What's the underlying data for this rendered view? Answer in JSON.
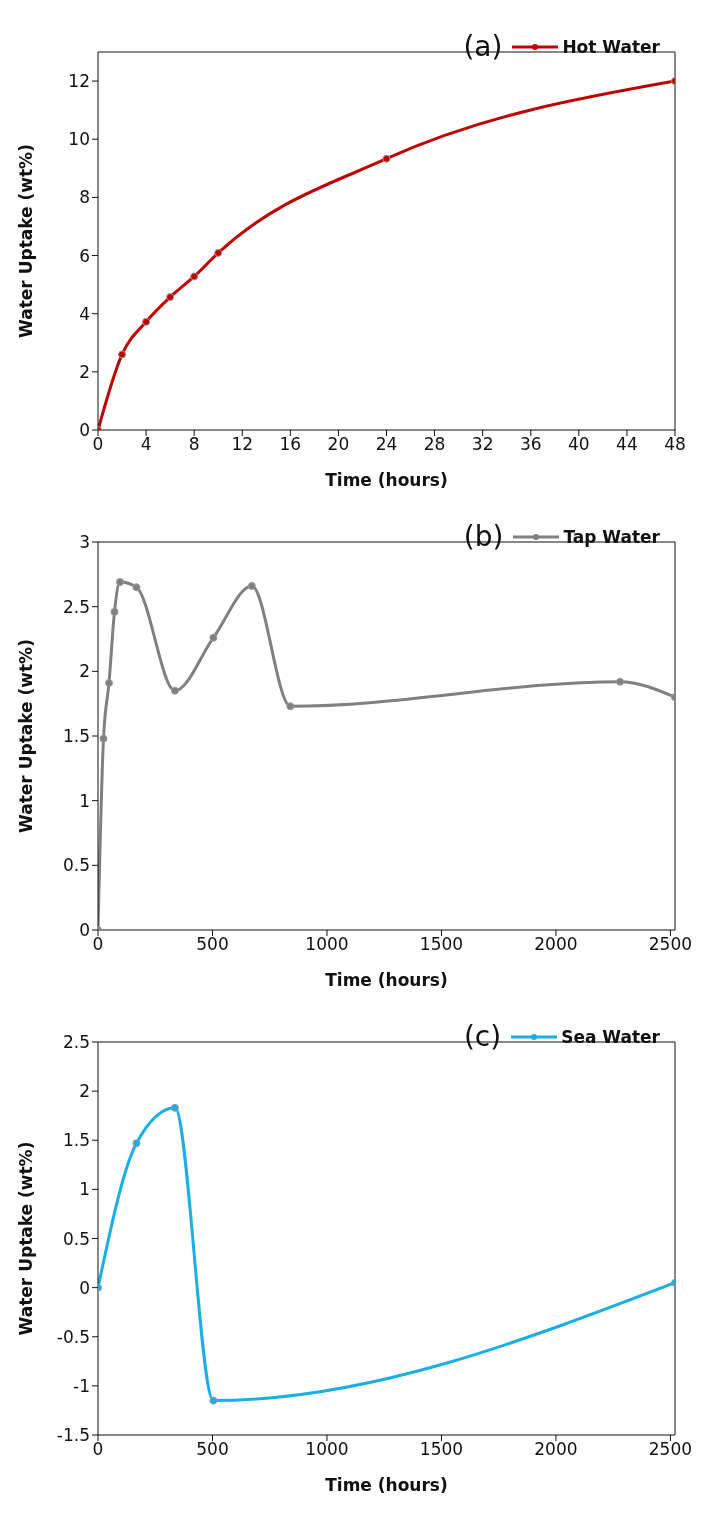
{
  "chart_data": [
    {
      "type": "line",
      "xlabel": "Time (hours)",
      "ylabel": "Water Uptake (wt%)",
      "annotations": [
        "(a)"
      ],
      "legend": "top right",
      "marker": "circle",
      "line_style": "solid",
      "grid": false,
      "x": [
        0,
        2,
        4,
        6,
        8,
        10,
        24,
        48
      ],
      "series": [
        {
          "name": "Hot Water",
          "color": "#c00000",
          "values": [
            0,
            2.6,
            3.72,
            4.57,
            5.28,
            6.09,
            9.33,
            12
          ]
        }
      ],
      "xlim": [
        0,
        48
      ],
      "xticks": [
        0,
        4,
        8,
        12,
        16,
        20,
        24,
        28,
        32,
        36,
        40,
        44,
        48
      ],
      "ylim": [
        0,
        13
      ],
      "yticks": [
        0,
        2,
        4,
        6,
        8,
        10,
        12
      ]
    },
    {
      "type": "line",
      "xlabel": "Time (hours)",
      "ylabel": "Water Uptake (wt%)",
      "annotations": [
        "(b)"
      ],
      "legend": "top right",
      "marker": "circle",
      "line_style": "solid",
      "grid": false,
      "x": [
        0,
        24,
        48,
        72,
        96,
        168,
        336,
        504,
        672,
        840,
        2280,
        2520
      ],
      "series": [
        {
          "name": "Tap Water",
          "color": "#808080",
          "values": [
            0,
            1.48,
            1.91,
            2.46,
            2.69,
            2.65,
            1.85,
            2.26,
            2.66,
            1.73,
            1.92,
            1.8
          ]
        }
      ],
      "xlim": [
        0,
        2520
      ],
      "xticks": [
        0,
        500,
        1000,
        1500,
        2000,
        2500
      ],
      "ylim": [
        0,
        3
      ],
      "yticks": [
        0,
        0.5,
        1,
        1.5,
        2,
        2.5,
        3
      ]
    },
    {
      "type": "line",
      "xlabel": "Time (hours)",
      "ylabel": "Water Uptake (wt%)",
      "annotations": [
        "(c)"
      ],
      "legend": "top right",
      "marker": "circle",
      "line_style": "solid",
      "grid": false,
      "x": [
        0,
        168,
        336,
        504,
        2520
      ],
      "series": [
        {
          "name": "Sea Water",
          "color": "#1aaee6",
          "values": [
            0,
            1.47,
            1.83,
            -1.15,
            0.05
          ]
        }
      ],
      "xlim": [
        0,
        2520
      ],
      "xticks": [
        0,
        500,
        1000,
        1500,
        2000,
        2500
      ],
      "ylim": [
        -1.5,
        2.5
      ],
      "yticks": [
        -1.5,
        -1,
        -0.5,
        0,
        0.5,
        1,
        1.5,
        2,
        2.5
      ]
    }
  ]
}
